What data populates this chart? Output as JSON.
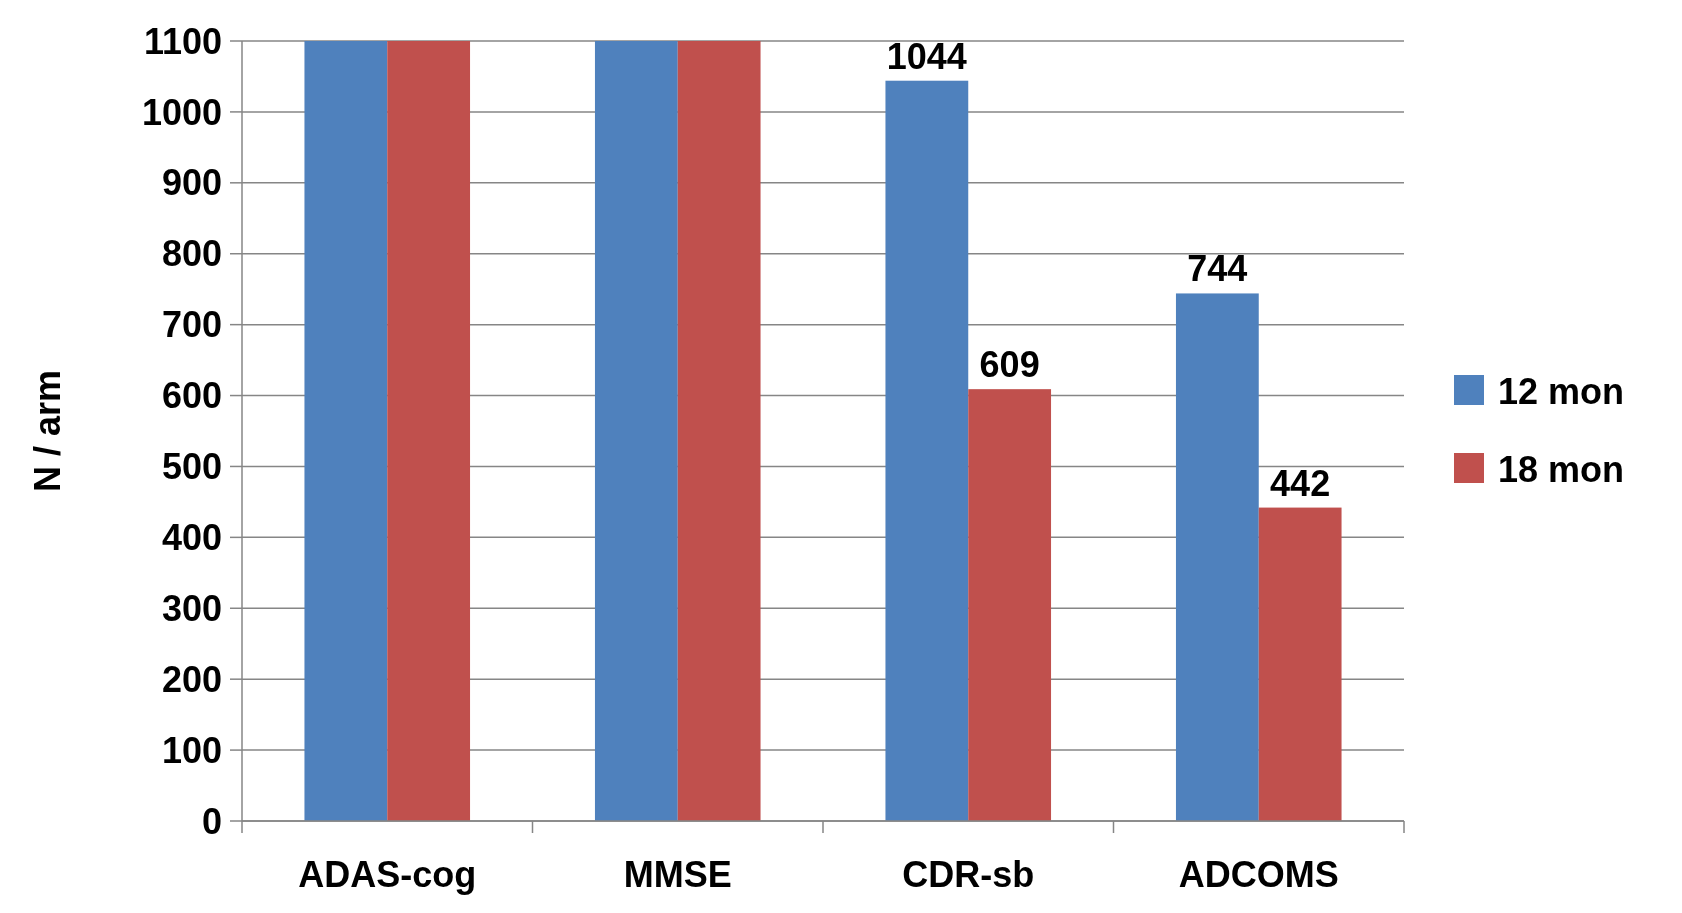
{
  "chart_data": {
    "type": "bar",
    "ylabel": "N / arm",
    "categories": [
      "ADAS-cog",
      "MMSE",
      "CDR-sb",
      "ADCOMS"
    ],
    "series": [
      {
        "name": "12 mon",
        "color": "#4f81bd",
        "values": [
          1100,
          1100,
          1044,
          744
        ],
        "value_labels": [
          null,
          null,
          "1044",
          "744"
        ]
      },
      {
        "name": "18 mon",
        "color": "#c0504d",
        "values": [
          1100,
          1100,
          609,
          442
        ],
        "value_labels": [
          null,
          null,
          "609",
          "442"
        ]
      }
    ],
    "ylim": [
      0,
      1100
    ],
    "yticks": [
      0,
      100,
      200,
      300,
      400,
      500,
      600,
      700,
      800,
      900,
      1000,
      1100
    ],
    "grid": "y",
    "legend": "right"
  }
}
